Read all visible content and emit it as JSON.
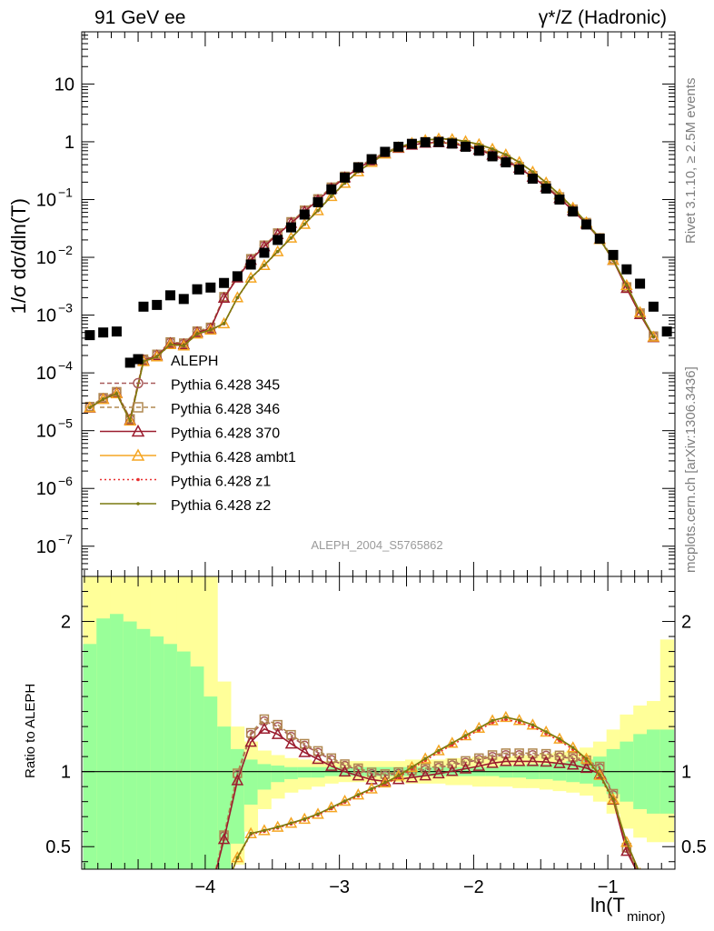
{
  "header": {
    "left": "91 GeV ee",
    "right": "γ*/Z (Hadronic)"
  },
  "side_labels": {
    "rivet": "Rivet 3.1.10, ≥ 2.5M events",
    "mcplots": "mcplots.cern.ch [arXiv:1306.3436]"
  },
  "watermark": "ALEPH_2004_S5765862",
  "chart_data": [
    {
      "type": "scatter",
      "panel": "main",
      "ylabel": "1/σ dσ/dln(T_minor)",
      "xlabel": "ln(T_minor)",
      "yscale": "log",
      "ylim": [
        3e-08,
        80
      ],
      "xlim": [
        -4.92,
        -0.5
      ],
      "yticks": [
        1e-07,
        1e-06,
        1e-05,
        0.0001,
        0.001,
        0.01,
        0.1,
        1,
        10
      ],
      "ytick_labels": [
        "10^-7",
        "10^-6",
        "10^-5",
        "10^-4",
        "10^-3",
        "10^-2",
        "10^-1",
        "1",
        "10"
      ],
      "legend_placement": "lower-left",
      "series": [
        {
          "name": "ALEPH",
          "color": "#000000",
          "marker": "square",
          "x": [
            -4.86,
            -4.76,
            -4.66,
            -4.56,
            -4.46,
            -4.36,
            -4.26,
            -4.16,
            -4.06,
            -3.96,
            -3.86,
            -3.76,
            -3.66,
            -3.56,
            -3.46,
            -3.36,
            -3.26,
            -3.16,
            -3.06,
            -2.96,
            -2.86,
            -2.76,
            -2.66,
            -2.56,
            -2.46,
            -2.36,
            -2.26,
            -2.16,
            -2.06,
            -1.96,
            -1.86,
            -1.76,
            -1.66,
            -1.56,
            -1.46,
            -1.36,
            -1.26,
            -1.16,
            -1.06,
            -0.96,
            -0.86,
            -0.76,
            -0.66,
            -0.56
          ],
          "y": [
            0.00045,
            0.0005,
            0.00052,
            0.00015,
            0.0014,
            0.0015,
            0.0022,
            0.0019,
            0.0028,
            0.003,
            0.0036,
            0.0047,
            0.0075,
            0.012,
            0.02,
            0.033,
            0.055,
            0.09,
            0.15,
            0.24,
            0.36,
            0.5,
            0.67,
            0.82,
            0.92,
            0.98,
            0.99,
            0.93,
            0.82,
            0.7,
            0.56,
            0.44,
            0.33,
            0.23,
            0.155,
            0.1,
            0.062,
            0.037,
            0.021,
            0.011,
            0.0062,
            0.0035,
            0.0014,
            0.00052
          ]
        },
        {
          "name": "Pythia 6.428 345",
          "color": "#a85a5a",
          "marker": "circle-open",
          "dash": "5,3",
          "x": [],
          "y": []
        },
        {
          "name": "Pythia 6.428 346",
          "color": "#b08850",
          "marker": "square-open",
          "dash": "5,3",
          "x": [],
          "y": []
        },
        {
          "name": "Pythia 6.428 370",
          "color": "#9b1c2e",
          "marker": "triangle-open",
          "dash": "",
          "x": [],
          "y": []
        },
        {
          "name": "Pythia 6.428 ambt1",
          "color": "#f5a623",
          "marker": "triangle-open",
          "dash": "",
          "x": [],
          "y": []
        },
        {
          "name": "Pythia 6.428 z1",
          "color": "#e83030",
          "marker": "dot",
          "dash": "2,3",
          "x": [],
          "y": []
        },
        {
          "name": "Pythia 6.428 z2",
          "color": "#7a7a10",
          "marker": "dot",
          "dash": "",
          "x": [],
          "y": []
        }
      ]
    },
    {
      "type": "line",
      "panel": "ratio",
      "ylabel": "Ratio to ALEPH",
      "xlabel": "ln(T_minor)",
      "ylim": [
        0.35,
        2.3
      ],
      "yticks": [
        0.5,
        1,
        2
      ],
      "xticks": [
        -4,
        -3,
        -2,
        -1
      ],
      "xtick_labels": [
        "−4",
        "−3",
        "−2",
        "−1"
      ],
      "bands": {
        "x_edges": [
          -4.91,
          -4.81,
          -4.71,
          -4.61,
          -4.51,
          -4.41,
          -4.31,
          -4.21,
          -4.11,
          -4.01,
          -3.91,
          -3.81,
          -3.71,
          -3.61,
          -3.51,
          -3.41,
          -3.31,
          -3.21,
          -3.11,
          -3.01,
          -2.91,
          -2.81,
          -2.71,
          -2.61,
          -2.51,
          -2.41,
          -2.31,
          -2.21,
          -2.11,
          -2.01,
          -1.91,
          -1.81,
          -1.71,
          -1.61,
          -1.51,
          -1.41,
          -1.31,
          -1.21,
          -1.11,
          -1.01,
          -0.91,
          -0.81,
          -0.71,
          -0.61,
          -0.51
        ],
        "stat_lo": [
          0.0,
          0.0,
          0.0,
          0.0,
          0.0,
          0.0,
          0.0,
          0.0,
          0.0,
          0.0,
          0.2,
          0.52,
          0.78,
          0.88,
          0.93,
          0.95,
          0.96,
          0.96,
          0.97,
          0.97,
          0.97,
          0.97,
          0.97,
          0.97,
          0.97,
          0.97,
          0.97,
          0.97,
          0.97,
          0.97,
          0.97,
          0.96,
          0.96,
          0.95,
          0.95,
          0.94,
          0.93,
          0.92,
          0.9,
          0.85,
          0.8,
          0.75,
          0.72,
          0.72
        ],
        "stat_hi": [
          1.85,
          2.02,
          2.05,
          2.0,
          1.95,
          1.9,
          1.85,
          1.8,
          1.7,
          1.5,
          1.3,
          1.15,
          1.08,
          1.05,
          1.04,
          1.03,
          1.03,
          1.03,
          1.03,
          1.03,
          1.03,
          1.03,
          1.03,
          1.03,
          1.03,
          1.03,
          1.03,
          1.03,
          1.03,
          1.03,
          1.03,
          1.04,
          1.04,
          1.05,
          1.05,
          1.06,
          1.07,
          1.08,
          1.1,
          1.15,
          1.2,
          1.25,
          1.28,
          1.28
        ],
        "syst_lo": [
          0.0,
          0.0,
          0.0,
          0.0,
          0.0,
          0.0,
          0.0,
          0.0,
          0.0,
          0.0,
          0.0,
          0.38,
          0.6,
          0.75,
          0.82,
          0.86,
          0.88,
          0.9,
          0.92,
          0.93,
          0.93,
          0.93,
          0.93,
          0.93,
          0.92,
          0.92,
          0.92,
          0.91,
          0.91,
          0.9,
          0.9,
          0.9,
          0.89,
          0.89,
          0.88,
          0.87,
          0.86,
          0.84,
          0.8,
          0.72,
          0.62,
          0.56,
          0.53,
          0.53
        ],
        "syst_hi": [
          2.3,
          2.3,
          2.3,
          2.3,
          2.3,
          2.3,
          2.3,
          2.3,
          2.3,
          2.3,
          1.6,
          1.3,
          1.2,
          1.14,
          1.11,
          1.09,
          1.08,
          1.07,
          1.07,
          1.07,
          1.07,
          1.07,
          1.07,
          1.07,
          1.08,
          1.08,
          1.08,
          1.09,
          1.09,
          1.1,
          1.1,
          1.1,
          1.11,
          1.11,
          1.12,
          1.13,
          1.14,
          1.16,
          1.2,
          1.28,
          1.38,
          1.44,
          1.47,
          1.88
        ]
      }
    }
  ]
}
